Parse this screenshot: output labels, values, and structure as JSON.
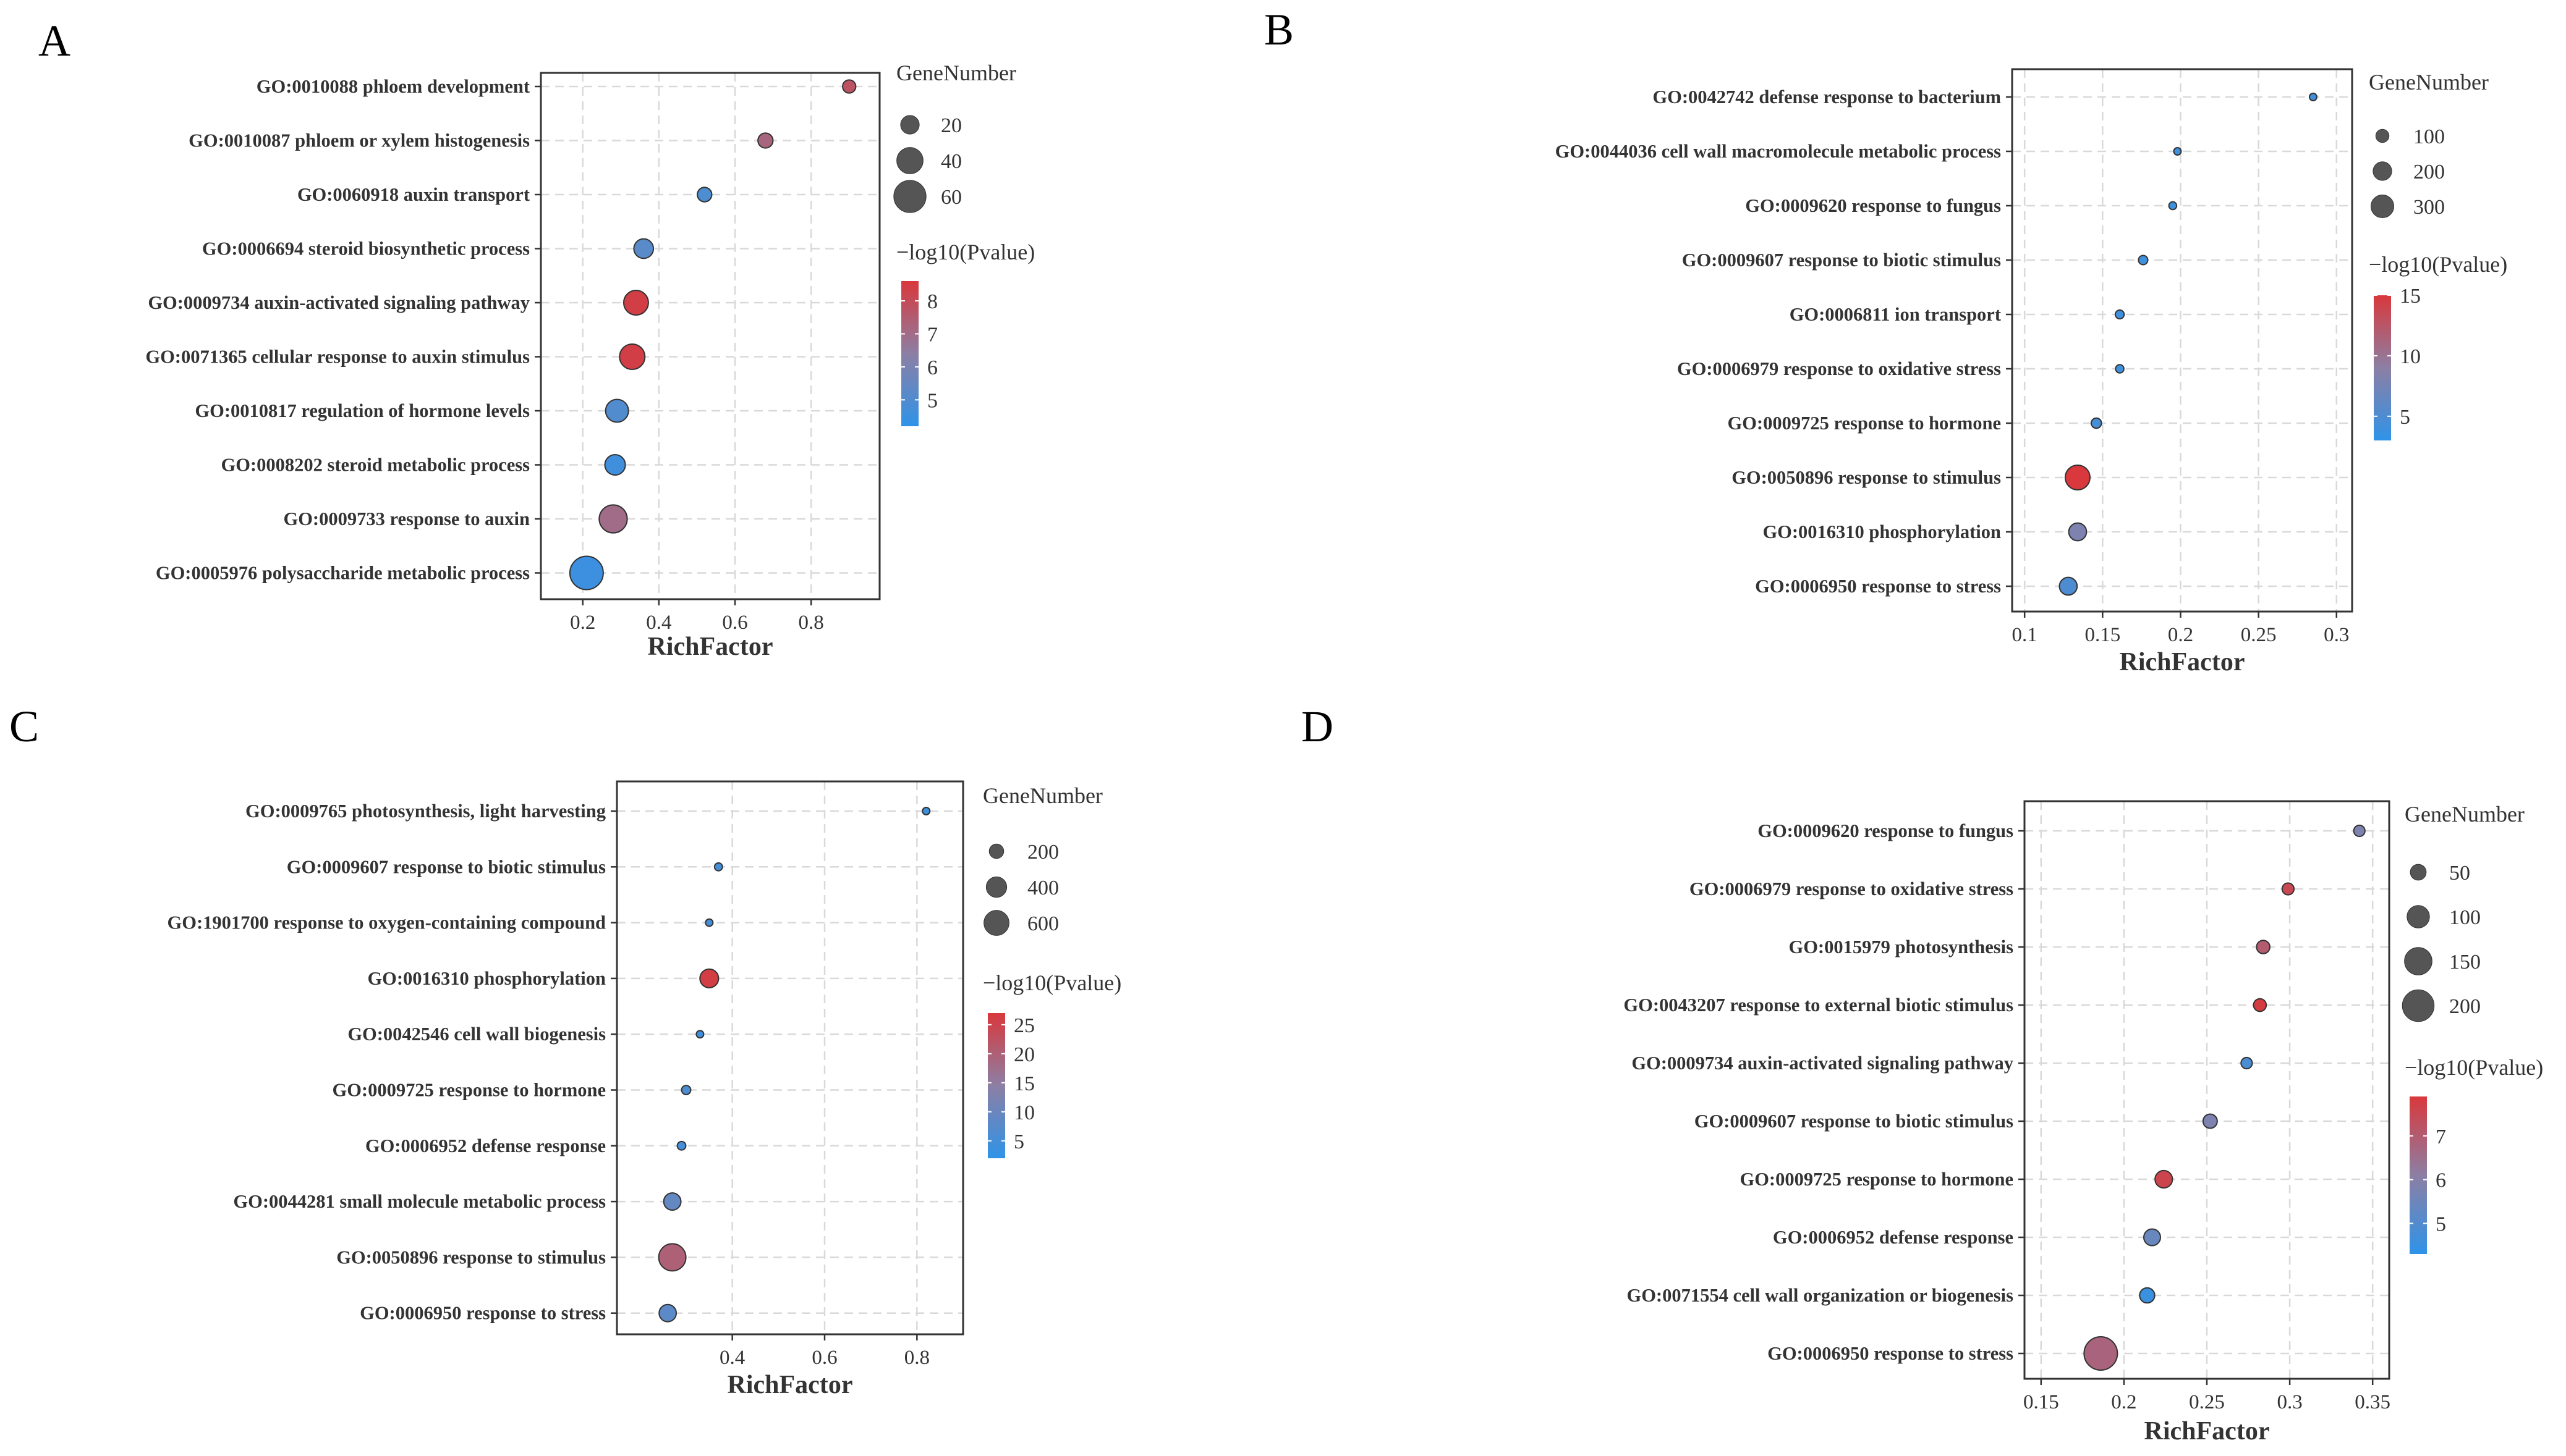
{
  "chart_data": [
    {
      "panel": "A",
      "type": "scatter",
      "xlabel": "RichFactor",
      "xlim": [
        0.09,
        0.98
      ],
      "xticks": [
        0.2,
        0.4,
        0.6,
        0.8
      ],
      "xtick_labels": [
        "0.2",
        "0.4",
        "0.6",
        "0.8"
      ],
      "size_legend_title": "GeneNumber",
      "size_legend": [
        20,
        40,
        60
      ],
      "color_legend_title": "−log10(Pvalue)",
      "color_range": [
        4.2,
        8.6
      ],
      "color_ticks": [
        5,
        6,
        7,
        8
      ],
      "terms": [
        {
          "label": "GO:0010088 phloem development",
          "rich": 0.9,
          "genes": 10,
          "logp": 7.8
        },
        {
          "label": "GO:0010087 phloem or xylem histogenesis",
          "rich": 0.68,
          "genes": 13,
          "logp": 7.2
        },
        {
          "label": "GO:0060918 auxin transport",
          "rich": 0.52,
          "genes": 12,
          "logp": 4.9
        },
        {
          "label": "GO:0006694 steroid biosynthetic process",
          "rich": 0.36,
          "genes": 22,
          "logp": 5.2
        },
        {
          "label": "GO:0009734 auxin-activated signaling pathway",
          "rich": 0.34,
          "genes": 35,
          "logp": 8.4
        },
        {
          "label": "GO:0071365 cellular response to auxin stimulus",
          "rich": 0.33,
          "genes": 37,
          "logp": 8.4
        },
        {
          "label": "GO:0010817 regulation of hormone levels",
          "rich": 0.29,
          "genes": 30,
          "logp": 5.0
        },
        {
          "label": "GO:0008202 steroid metabolic process",
          "rich": 0.285,
          "genes": 24,
          "logp": 4.6
        },
        {
          "label": "GO:0009733 response to auxin",
          "rich": 0.28,
          "genes": 45,
          "logp": 7.0
        },
        {
          "label": "GO:0005976 polysaccharide metabolic process",
          "rich": 0.21,
          "genes": 64,
          "logp": 4.5
        }
      ]
    },
    {
      "panel": "B",
      "type": "scatter",
      "xlabel": "RichFactor",
      "xlim": [
        0.092,
        0.31
      ],
      "xticks": [
        0.1,
        0.15,
        0.2,
        0.25,
        0.3
      ],
      "xtick_labels": [
        "0.1",
        "0.15",
        "0.2",
        "0.25",
        "0.3"
      ],
      "size_legend_title": "GeneNumber",
      "size_legend": [
        100,
        200,
        300
      ],
      "color_legend_title": "−log10(Pvalue)",
      "color_range": [
        3,
        15
      ],
      "color_ticks": [
        5,
        10,
        15
      ],
      "terms": [
        {
          "label": "GO:0042742 defense response to bacterium",
          "rich": 0.285,
          "genes": 30,
          "logp": 4
        },
        {
          "label": "GO:0044036 cell wall macromolecule metabolic process",
          "rich": 0.198,
          "genes": 30,
          "logp": 4
        },
        {
          "label": "GO:0009620 response to fungus",
          "rich": 0.195,
          "genes": 35,
          "logp": 4
        },
        {
          "label": "GO:0009607 response to biotic stimulus",
          "rich": 0.176,
          "genes": 50,
          "logp": 4
        },
        {
          "label": "GO:0006811 ion transport",
          "rich": 0.161,
          "genes": 45,
          "logp": 4
        },
        {
          "label": "GO:0006979 response to oxidative stress",
          "rich": 0.161,
          "genes": 40,
          "logp": 4
        },
        {
          "label": "GO:0009725 response to hormone",
          "rich": 0.146,
          "genes": 60,
          "logp": 4.5
        },
        {
          "label": "GO:0050896 response to stimulus",
          "rich": 0.134,
          "genes": 350,
          "logp": 15
        },
        {
          "label": "GO:0016310 phosphorylation",
          "rich": 0.134,
          "genes": 180,
          "logp": 8
        },
        {
          "label": "GO:0006950 response to stress",
          "rich": 0.128,
          "genes": 180,
          "logp": 5
        }
      ]
    },
    {
      "panel": "C",
      "type": "scatter",
      "xlabel": "RichFactor",
      "xlim": [
        0.15,
        0.9
      ],
      "xticks": [
        0.4,
        0.6,
        0.8
      ],
      "xtick_labels": [
        "0.4",
        "0.6",
        "0.8"
      ],
      "size_legend_title": "GeneNumber",
      "size_legend": [
        200,
        400,
        600
      ],
      "color_legend_title": "−log10(Pvalue)",
      "color_range": [
        2,
        27
      ],
      "color_ticks": [
        5,
        10,
        15,
        20,
        25
      ],
      "terms": [
        {
          "label": "GO:0009765 photosynthesis, light harvesting",
          "rich": 0.82,
          "genes": 30,
          "logp": 4
        },
        {
          "label": "GO:0009607 response to biotic stimulus",
          "rich": 0.37,
          "genes": 60,
          "logp": 5
        },
        {
          "label": "GO:1901700 response to oxygen-containing compound",
          "rich": 0.35,
          "genes": 50,
          "logp": 5
        },
        {
          "label": "GO:0016310 phosphorylation",
          "rich": 0.35,
          "genes": 330,
          "logp": 26
        },
        {
          "label": "GO:0042546 cell wall biogenesis",
          "rich": 0.33,
          "genes": 40,
          "logp": 4
        },
        {
          "label": "GO:0009725 response to hormone",
          "rich": 0.3,
          "genes": 80,
          "logp": 6
        },
        {
          "label": "GO:0006952 defense response",
          "rich": 0.29,
          "genes": 70,
          "logp": 5
        },
        {
          "label": "GO:0044281 small molecule metabolic process",
          "rich": 0.27,
          "genes": 280,
          "logp": 9
        },
        {
          "label": "GO:0050896 response to stimulus",
          "rich": 0.27,
          "genes": 700,
          "logp": 20
        },
        {
          "label": "GO:0006950 response to stress",
          "rich": 0.26,
          "genes": 280,
          "logp": 8
        }
      ]
    },
    {
      "panel": "D",
      "type": "scatter",
      "xlabel": "RichFactor",
      "xlim": [
        0.14,
        0.36
      ],
      "xticks": [
        0.15,
        0.2,
        0.25,
        0.3,
        0.35
      ],
      "xtick_labels": [
        "0.15",
        "0.2",
        "0.25",
        "0.3",
        "0.35"
      ],
      "size_legend_title": "GeneNumber",
      "size_legend": [
        50,
        100,
        150,
        200
      ],
      "color_legend_title": "−log10(Pvalue)",
      "color_range": [
        4.3,
        7.9
      ],
      "color_ticks": [
        5,
        6,
        7
      ],
      "terms": [
        {
          "label": "GO:0009620 response to fungus",
          "rich": 0.342,
          "genes": 25,
          "logp": 5.8
        },
        {
          "label": "GO:0006979 response to oxidative stress",
          "rich": 0.299,
          "genes": 28,
          "logp": 7.5
        },
        {
          "label": "GO:0015979 photosynthesis",
          "rich": 0.284,
          "genes": 35,
          "logp": 7.0
        },
        {
          "label": "GO:0043207 response to external biotic stimulus",
          "rich": 0.282,
          "genes": 32,
          "logp": 7.8
        },
        {
          "label": "GO:0009734 auxin-activated signaling pathway",
          "rich": 0.274,
          "genes": 25,
          "logp": 4.8
        },
        {
          "label": "GO:0009607 response to biotic stimulus",
          "rich": 0.252,
          "genes": 40,
          "logp": 5.8
        },
        {
          "label": "GO:0009725 response to hormone",
          "rich": 0.224,
          "genes": 60,
          "logp": 7.6
        },
        {
          "label": "GO:0006952 defense response",
          "rich": 0.217,
          "genes": 55,
          "logp": 5.4
        },
        {
          "label": "GO:0071554 cell wall organization or biogenesis",
          "rich": 0.214,
          "genes": 45,
          "logp": 4.5
        },
        {
          "label": "GO:0006950 response to stress",
          "rich": 0.186,
          "genes": 220,
          "logp": 6.8
        }
      ]
    }
  ]
}
